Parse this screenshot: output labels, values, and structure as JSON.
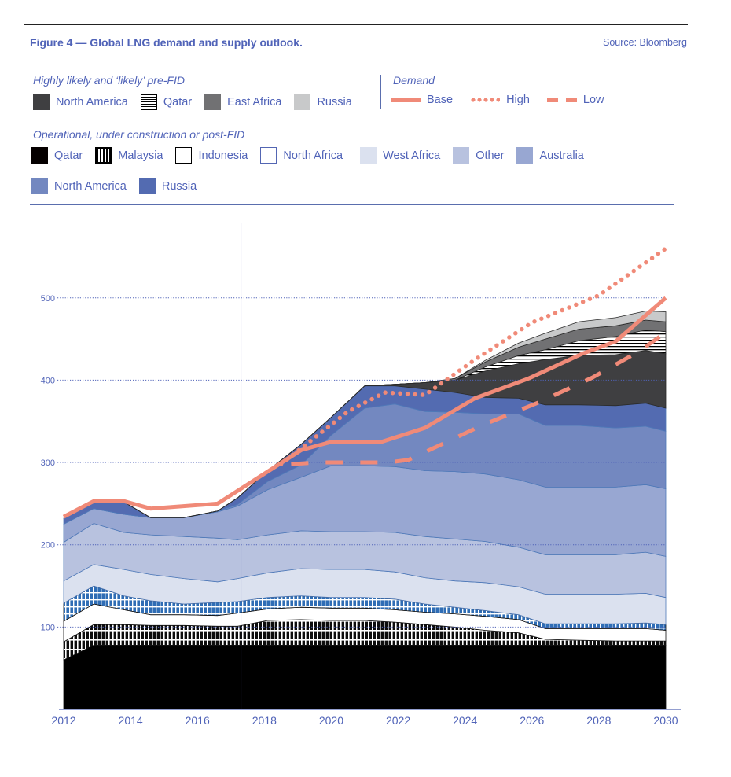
{
  "header": {
    "title": "Figure 4 — Global LNG demand and supply outlook.",
    "source": "Source: Bloomberg"
  },
  "legend": {
    "pre_fid": {
      "heading": "Highly likely and ‘likely’ pre-FID",
      "items": [
        {
          "label": "North America",
          "color": "#3f3f41",
          "pattern": "solid"
        },
        {
          "label": "Qatar",
          "color": "#000000",
          "pattern": "horizontal-stripes"
        },
        {
          "label": "East Africa",
          "color": "#717173",
          "pattern": "solid"
        },
        {
          "label": "Russia",
          "color": "#c8c9ca",
          "pattern": "solid"
        }
      ]
    },
    "demand": {
      "heading": "Demand",
      "items": [
        {
          "label": "Base",
          "style": "solid",
          "color": "#f08a78"
        },
        {
          "label": "High",
          "style": "dotted",
          "color": "#f08a78"
        },
        {
          "label": "Low",
          "style": "dashed",
          "color": "#f08a78"
        }
      ]
    },
    "operational": {
      "heading": "Operational, under construction or post-FID",
      "items": [
        {
          "label": "Qatar",
          "color": "#050000",
          "pattern": "solid"
        },
        {
          "label": "Malaysia",
          "color": "#000000",
          "pattern": "vertical-stripes"
        },
        {
          "label": "Indonesia",
          "color": "#ffffff",
          "pattern": "outline-black"
        },
        {
          "label": "North Africa",
          "color": "#ffffff",
          "pattern": "outline-blue"
        },
        {
          "label": "West Africa",
          "color": "#dbe1ef",
          "pattern": "solid"
        },
        {
          "label": "Other",
          "color": "#b8c2df",
          "pattern": "solid"
        },
        {
          "label": "Australia",
          "color": "#98a7d2",
          "pattern": "solid"
        },
        {
          "label": "North America",
          "color": "#7388c0",
          "pattern": "solid"
        },
        {
          "label": "Russia",
          "color": "#536bb1",
          "pattern": "solid"
        }
      ]
    }
  },
  "chart_data": {
    "type": "area",
    "title": "Global LNG demand and supply outlook",
    "xlabel": "",
    "ylabel": "",
    "x": [
      2012,
      2012.9,
      2013.8,
      2014.6,
      2015.6,
      2016.6,
      2017.2,
      2018.1,
      2019.1,
      2020,
      2021,
      2021.9,
      2022.8,
      2023.7,
      2024.6,
      2025.6,
      2026.4,
      2027.4,
      2028.5,
      2029.4,
      2030
    ],
    "xticks": [
      "2012",
      "2014",
      "2016",
      "2018",
      "2020",
      "2022",
      "2024",
      "2026",
      "2028",
      "2030"
    ],
    "yticks": [
      "100",
      "200",
      "300",
      "400",
      "500"
    ],
    "ylim": [
      0,
      560
    ],
    "xlim": [
      2012,
      2030
    ],
    "grid": "horizontal-dotted",
    "forecast_marker_year": 2017.3,
    "stack_order_bottom_to_top": [
      "Qatar (operational)",
      "Malaysia",
      "Indonesia",
      "North Africa",
      "West Africa",
      "Other",
      "Australia",
      "North America (operational)",
      "Russia (operational)",
      "North America (pre-FID)",
      "Qatar (pre-FID)",
      "East Africa",
      "Russia (pre-FID)"
    ],
    "series": [
      {
        "name": "Qatar (operational)",
        "group": "operational",
        "color": "#000000",
        "values": [
          60,
          78,
          78,
          78,
          78,
          78,
          78,
          78,
          78,
          78,
          78,
          78,
          78,
          78,
          78,
          78,
          78,
          78,
          78,
          78,
          78
        ]
      },
      {
        "name": "Malaysia",
        "group": "operational",
        "color": "#0d0d0d",
        "pattern": "vstripe",
        "values": [
          22,
          25,
          25,
          24,
          24,
          23,
          23,
          30,
          31,
          30,
          30,
          28,
          25,
          22,
          18,
          15,
          7,
          6,
          5,
          5,
          5
        ]
      },
      {
        "name": "Indonesia",
        "group": "operational",
        "color": "#ffffff",
        "values": [
          25,
          25,
          18,
          13,
          13,
          13,
          16,
          14,
          15,
          15,
          15,
          15,
          15,
          16,
          17,
          16,
          13,
          14,
          15,
          15,
          13
        ]
      },
      {
        "name": "North Africa",
        "group": "operational",
        "color": "#2f6db5",
        "pattern": "grid",
        "values": [
          22,
          22,
          17,
          17,
          13,
          16,
          14,
          14,
          14,
          13,
          13,
          13,
          10,
          8,
          7,
          6,
          6,
          6,
          6,
          7,
          7
        ]
      },
      {
        "name": "West Africa",
        "group": "operational",
        "color": "#dbe1ef",
        "values": [
          27,
          26,
          32,
          32,
          31,
          25,
          28,
          30,
          33,
          34,
          34,
          33,
          32,
          32,
          34,
          34,
          36,
          36,
          36,
          36,
          33
        ]
      },
      {
        "name": "Other",
        "group": "operational",
        "color": "#b8c2df",
        "values": [
          47,
          50,
          45,
          48,
          51,
          53,
          47,
          46,
          46,
          46,
          46,
          48,
          50,
          51,
          50,
          48,
          48,
          48,
          48,
          50,
          50
        ]
      },
      {
        "name": "Australia",
        "group": "operational",
        "color": "#98a7d2",
        "values": [
          22,
          18,
          22,
          21,
          23,
          32,
          41,
          55,
          65,
          80,
          80,
          80,
          80,
          82,
          82,
          82,
          82,
          82,
          82,
          82,
          82
        ]
      },
      {
        "name": "North America (operational)",
        "group": "operational",
        "color": "#7388c0",
        "values": [
          0,
          0,
          0,
          0,
          0,
          1,
          2,
          10,
          15,
          37,
          70,
          76,
          72,
          72,
          73,
          80,
          75,
          75,
          72,
          71,
          70
        ]
      },
      {
        "name": "Russia (operational)",
        "group": "operational",
        "color": "#536bb1",
        "values": [
          7,
          10,
          15,
          0,
          0,
          0,
          8,
          13,
          25,
          22,
          27,
          22,
          27,
          24,
          20,
          19,
          25,
          25,
          27,
          28,
          28
        ]
      },
      {
        "name": "North America (pre-FID)",
        "group": "pre-fid",
        "color": "#3f3f41",
        "values": [
          0,
          0,
          0,
          0,
          0,
          0,
          0,
          0,
          0,
          0,
          0,
          2,
          8,
          15,
          32,
          42,
          55,
          60,
          62,
          64,
          66
        ]
      },
      {
        "name": "Qatar (pre-FID)",
        "group": "pre-fid",
        "color": "#000000",
        "pattern": "hstripe",
        "values": [
          0,
          0,
          0,
          0,
          0,
          0,
          0,
          0,
          0,
          0,
          0,
          0,
          0,
          0,
          5,
          10,
          12,
          18,
          22,
          25,
          27
        ]
      },
      {
        "name": "East Africa",
        "group": "pre-fid",
        "color": "#717173",
        "values": [
          0,
          0,
          0,
          0,
          0,
          0,
          0,
          0,
          0,
          0,
          0,
          0,
          0,
          2,
          6,
          10,
          13,
          14,
          13,
          12,
          12
        ]
      },
      {
        "name": "Russia (pre-FID)",
        "group": "pre-fid",
        "color": "#c8c9ca",
        "values": [
          0,
          0,
          0,
          0,
          0,
          0,
          0,
          0,
          0,
          0,
          0,
          0,
          0,
          0,
          2,
          5,
          7,
          9,
          10,
          11,
          12
        ]
      }
    ],
    "demand_lines": [
      {
        "name": "Base",
        "style": "solid",
        "x": [
          2012,
          2012.9,
          2013.8,
          2014.6,
          2016.6,
          2019.1,
          2020,
          2021.5,
          2022.8,
          2024.3,
          2025.9,
          2027.5,
          2028.5,
          2030
        ],
        "values": [
          234,
          253,
          253,
          244,
          250,
          315,
          325,
          325,
          342,
          378,
          402,
          432,
          447,
          500
        ]
      },
      {
        "name": "High",
        "style": "dotted",
        "x": [
          2018.5,
          2019.5,
          2020.5,
          2021.6,
          2022.8,
          2024.3,
          2026,
          2028,
          2030
        ],
        "values": [
          298,
          330,
          362,
          385,
          382,
          425,
          470,
          503,
          560
        ]
      },
      {
        "name": "Low",
        "style": "dashed",
        "x": [
          2018.8,
          2019.6,
          2021.7,
          2022.3,
          2023.3,
          2024.5,
          2026.2,
          2027.8,
          2029.2,
          2030
        ],
        "values": [
          298,
          300,
          300,
          303,
          322,
          345,
          373,
          403,
          435,
          458
        ]
      }
    ]
  }
}
